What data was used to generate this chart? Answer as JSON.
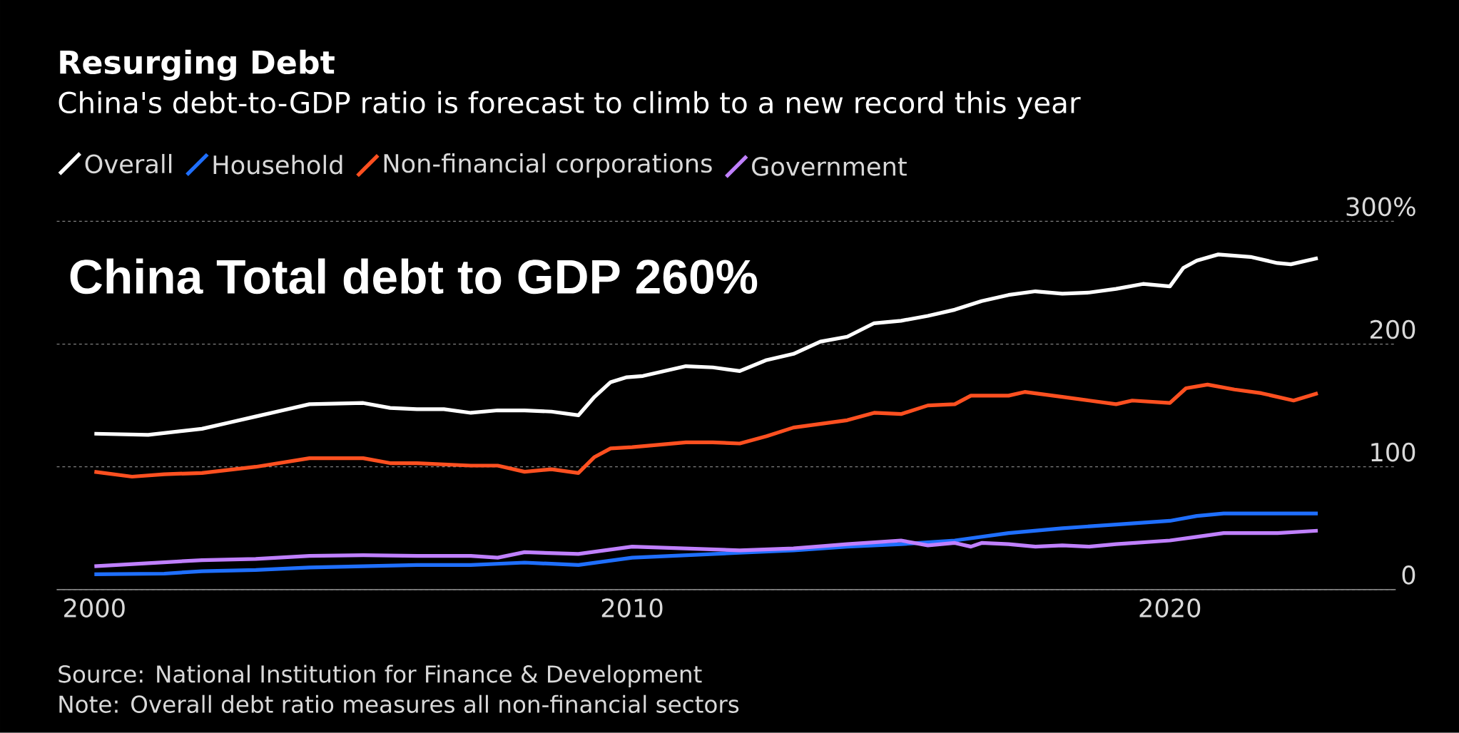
{
  "chart_data": {
    "type": "line",
    "title": "Resurging Debt",
    "subtitle": "China's debt-to-GDP ratio is forecast to climb to a new record this year",
    "annotations": [
      "China Total debt to GDP 260%",
      "Source: National Institution for Finance & Development",
      "Note: Overall debt ratio measures all non-financial sectors"
    ],
    "legend": "top",
    "grid": "y",
    "xlim": [
      1999.3,
      2024.2
    ],
    "xticks": [
      2000,
      2010,
      2020
    ],
    "ylim": [
      0,
      300
    ],
    "yticks": [
      0,
      100,
      200,
      {
        "value": 300,
        "label": "300%"
      }
    ],
    "series": [
      {
        "name": "Overall",
        "color": "#ffffff",
        "x": [
          2000,
          2001,
          2002,
          2002.5,
          2003,
          2003.5,
          2004,
          2005,
          2005.5,
          2006,
          2006.5,
          2007,
          2007.5,
          2008,
          2008.5,
          2009,
          2009.3,
          2009.6,
          2009.9,
          2010.2,
          2011,
          2011.5,
          2012,
          2012.5,
          2013,
          2013.5,
          2014,
          2014.5,
          2015,
          2015.5,
          2016,
          2016.5,
          2017,
          2017.5,
          2018,
          2018.5,
          2019,
          2019.5,
          2020,
          2020.25,
          2020.5,
          2020.9,
          2021.5,
          2022,
          2022.25,
          2022.75
        ],
        "values": [
          127,
          126,
          131,
          136,
          141,
          146,
          151,
          152,
          148,
          147,
          147,
          144,
          146,
          146,
          145,
          142,
          157,
          169,
          173,
          174,
          182,
          181,
          178,
          187,
          192,
          202,
          206,
          217,
          219,
          223,
          228,
          235,
          240,
          243,
          241,
          242,
          245,
          249,
          247,
          262,
          268,
          273,
          271,
          266,
          265,
          270
        ]
      },
      {
        "name": "Household",
        "color": "#1f6fff",
        "x": [
          2000,
          2001.3,
          2002,
          2003,
          2004,
          2005,
          2006,
          2007,
          2008,
          2009,
          2010,
          2011,
          2012,
          2013,
          2014,
          2015,
          2016,
          2017,
          2018,
          2019,
          2020,
          2020.5,
          2021,
          2022.75
        ],
        "values": [
          12.5,
          13,
          15,
          16,
          18,
          19,
          20,
          20,
          22,
          20,
          26,
          28,
          30,
          32,
          35,
          37,
          40,
          46,
          50,
          53,
          56,
          60,
          62,
          62
        ]
      },
      {
        "name": "Non-financial corporations",
        "color": "#ff5020",
        "x": [
          2000,
          2000.7,
          2001.3,
          2002,
          2003,
          2004,
          2005,
          2005.5,
          2006,
          2007,
          2007.5,
          2008,
          2008.5,
          2009,
          2009.3,
          2009.6,
          2010,
          2011,
          2011.5,
          2012,
          2012.5,
          2013,
          2014,
          2014.5,
          2015,
          2015.5,
          2016,
          2016.3,
          2017,
          2017.3,
          2018,
          2018.5,
          2019,
          2019.3,
          2020,
          2020.3,
          2020.7,
          2021.2,
          2021.7,
          2022.3,
          2022.75
        ],
        "values": [
          96,
          92,
          94,
          95,
          100,
          107,
          107,
          103,
          103,
          101,
          101,
          96,
          98,
          95,
          108,
          115,
          116,
          120,
          120,
          119,
          125,
          132,
          138,
          144,
          143,
          150,
          151,
          158,
          158,
          161,
          157,
          154,
          151,
          154,
          152,
          164,
          167,
          163,
          160,
          154,
          160
        ]
      },
      {
        "name": "Government",
        "color": "#c080ff",
        "x": [
          2000,
          2001,
          2002,
          2003,
          2004,
          2005,
          2006,
          2007,
          2007.5,
          2008,
          2009,
          2009.5,
          2010,
          2011,
          2012,
          2013,
          2014,
          2015,
          2015.5,
          2016,
          2016.3,
          2016.5,
          2017,
          2017.5,
          2018,
          2018.5,
          2019,
          2020,
          2020.5,
          2021,
          2022,
          2022.75
        ],
        "values": [
          19,
          21.5,
          24,
          25,
          27.5,
          28,
          27.5,
          27.5,
          26,
          30.5,
          29,
          32,
          35,
          33.5,
          32,
          33.5,
          37,
          40,
          36,
          38,
          35,
          38,
          37,
          35,
          36,
          35,
          37,
          40,
          43,
          46,
          46,
          48
        ]
      }
    ]
  }
}
